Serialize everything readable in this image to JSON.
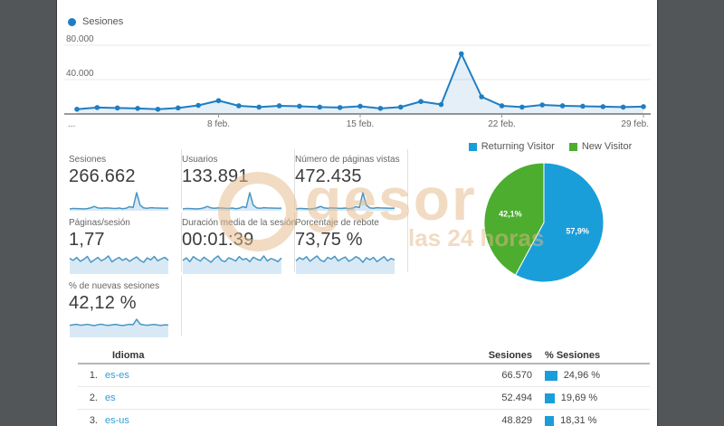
{
  "colors": {
    "frame": "#535659",
    "line_blue": "#1f7ec2",
    "pie_blue": "#1a9ed9",
    "pie_green": "#4cad2f",
    "link_blue": "#2e9fd4",
    "bar_blue": "#1a9ed9"
  },
  "chart_data": [
    {
      "id": "sessions-timeline",
      "type": "line",
      "legend_label": "Sesiones",
      "x_unit": "day of month (February)",
      "x": [
        1,
        2,
        3,
        4,
        5,
        6,
        7,
        8,
        9,
        10,
        11,
        12,
        13,
        14,
        15,
        16,
        17,
        18,
        19,
        20,
        21,
        22,
        23,
        24,
        25,
        26,
        27,
        28,
        29
      ],
      "values": [
        5500,
        7500,
        7000,
        6500,
        5500,
        7000,
        10000,
        15500,
        9500,
        8000,
        9500,
        9000,
        8000,
        7500,
        9000,
        6500,
        8000,
        14500,
        11000,
        70000,
        20000,
        9500,
        8000,
        10500,
        9500,
        9000,
        8500,
        8000,
        8500
      ],
      "ylim": [
        0,
        80000
      ],
      "yticks": [
        {
          "label": "40.000",
          "value": 40000
        },
        {
          "label": "80.000",
          "value": 80000
        }
      ],
      "xticks": [
        {
          "label": "...",
          "day": 1
        },
        {
          "label": "8 feb.",
          "day": 8
        },
        {
          "label": "15 feb.",
          "day": 15
        },
        {
          "label": "22 feb.",
          "day": 22
        },
        {
          "label": "29 feb.",
          "day": 29
        }
      ],
      "grid": true,
      "legend_position": "top-left"
    },
    {
      "id": "visitor-type-pie",
      "type": "pie",
      "slices": [
        {
          "label": "Returning Visitor",
          "pct": 57.9,
          "pct_label": "57,9%",
          "color": "#1a9ed9"
        },
        {
          "label": "New Visitor",
          "pct": 42.1,
          "pct_label": "42,1%",
          "color": "#4cad2f"
        }
      ],
      "legend_position": "top"
    }
  ],
  "metrics": [
    {
      "label": "Sesiones",
      "value": "266.662",
      "spark": [
        5500,
        7500,
        7000,
        6500,
        5500,
        7000,
        10000,
        15500,
        9500,
        8000,
        9500,
        9000,
        8000,
        7500,
        9000,
        6500,
        8000,
        14500,
        11000,
        70000,
        20000,
        9500,
        8000,
        10500,
        9500,
        9000,
        8500,
        8000,
        8500
      ]
    },
    {
      "label": "Usuarios",
      "value": "133.891",
      "spark": [
        2750,
        3750,
        3500,
        3250,
        2750,
        3500,
        5000,
        7750,
        4750,
        4000,
        4750,
        4500,
        4000,
        3750,
        4500,
        3250,
        4000,
        7250,
        5500,
        35000,
        10000,
        4750,
        4000,
        5250,
        4750,
        4500,
        4250,
        4000,
        4250
      ]
    },
    {
      "label": "Número de páginas vistas",
      "value": "472.435",
      "spark": [
        9700,
        13300,
        12400,
        11500,
        9700,
        12400,
        17700,
        27400,
        16800,
        14200,
        16800,
        15900,
        14200,
        13300,
        15900,
        11500,
        14200,
        25700,
        19500,
        124000,
        35400,
        16800,
        14200,
        18600,
        16800,
        15900,
        15000,
        14200,
        15000
      ]
    },
    {
      "label": "Páginas/sesión",
      "value": "1,77",
      "spark": [
        1.78,
        1.74,
        1.8,
        1.72,
        1.76,
        1.82,
        1.7,
        1.75,
        1.8,
        1.73,
        1.77,
        1.83,
        1.71,
        1.76,
        1.8,
        1.74,
        1.78,
        1.72,
        1.77,
        1.81,
        1.74,
        1.7,
        1.79,
        1.75,
        1.82,
        1.73,
        1.77,
        1.8,
        1.74
      ]
    },
    {
      "label": "Duración media de la sesión",
      "value": "00:01:39",
      "spark": [
        97,
        101,
        95,
        103,
        99,
        96,
        102,
        98,
        94,
        100,
        104,
        97,
        95,
        101,
        99,
        96,
        103,
        98,
        100,
        95,
        102,
        99,
        97,
        104,
        96,
        100,
        98,
        95,
        101
      ]
    },
    {
      "label": "Porcentaje de rebote",
      "value": "73,75 %",
      "spark": [
        73.2,
        74.1,
        73.6,
        74.4,
        73.1,
        73.9,
        74.6,
        73.4,
        73.0,
        74.2,
        73.7,
        74.5,
        73.2,
        73.8,
        74.3,
        73.1,
        73.6,
        74.4,
        73.9,
        72.8,
        74.1,
        73.5,
        74.2,
        73.0,
        73.7,
        74.4,
        73.2,
        73.9,
        73.5
      ]
    },
    {
      "label": "% de nuevas sesiones",
      "value": "42,12 %",
      "spark": [
        41.5,
        42.5,
        43,
        41.8,
        42.2,
        43.1,
        42,
        41.2,
        42.6,
        43.2,
        42.1,
        41.6,
        42.3,
        43,
        42,
        41.3,
        42.2,
        43.1,
        42.6,
        50.5,
        43.5,
        42.2,
        41.7,
        42.4,
        42.8,
        42.1,
        41.6,
        42.3,
        42
      ]
    }
  ],
  "table": {
    "headers": {
      "language": "Idioma",
      "sessions": "Sesiones",
      "pct_sessions": "% Sesiones"
    },
    "rows": [
      {
        "rank": "1.",
        "language": "es-es",
        "sessions": "66.570",
        "pct_label": "24,96 %",
        "pct_value": 24.96
      },
      {
        "rank": "2.",
        "language": "es",
        "sessions": "52.494",
        "pct_label": "19,69 %",
        "pct_value": 19.69
      },
      {
        "rank": "3.",
        "language": "es-us",
        "sessions": "48.829",
        "pct_label": "18,31 %",
        "pct_value": 18.31
      }
    ]
  },
  "watermark": {
    "text": "gesor",
    "subtext": "las 24 horas"
  }
}
